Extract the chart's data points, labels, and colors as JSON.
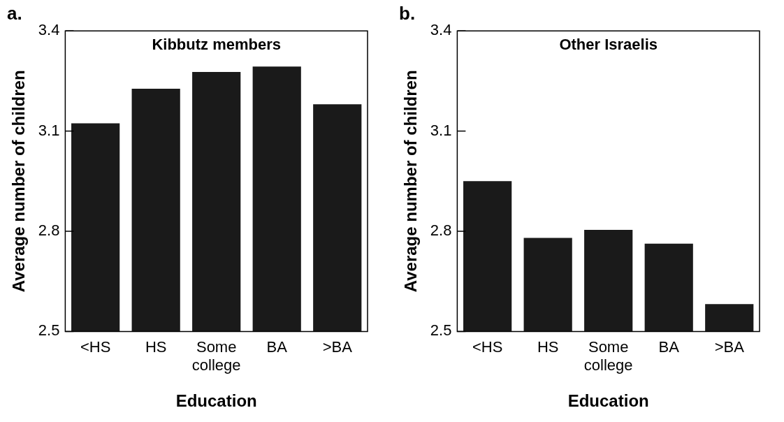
{
  "chart_data": [
    {
      "type": "bar",
      "title": "a.",
      "xlabel": "Education",
      "ylabel": "Average number of children",
      "annotations": [
        "Kibbutz members"
      ],
      "categories": [
        "<HS",
        "HS",
        "Some college",
        "BA",
        ">BA"
      ],
      "values": [
        3.123,
        3.227,
        3.277,
        3.293,
        3.18
      ],
      "color": "#1a1a1a",
      "ylim": [
        2.5,
        3.4
      ],
      "yticks": [
        2.5,
        2.8,
        3.1,
        3.4
      ],
      "grid": false
    },
    {
      "type": "bar",
      "title": "b.",
      "xlabel": "Education",
      "ylabel": "Average number of children",
      "annotations": [
        "Other Israelis"
      ],
      "categories": [
        "<HS",
        "HS",
        "Some college",
        "BA",
        ">BA"
      ],
      "values": [
        2.95,
        2.78,
        2.804,
        2.763,
        2.582
      ],
      "color": "#1a1a1a",
      "ylim": [
        2.5,
        3.4
      ],
      "yticks": [
        2.5,
        2.8,
        3.1,
        3.4
      ],
      "grid": false
    }
  ]
}
